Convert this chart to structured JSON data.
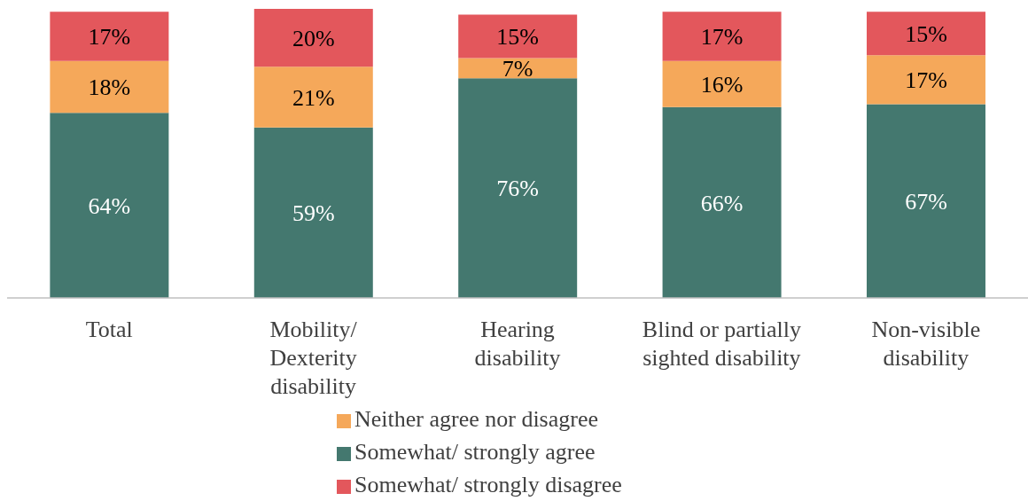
{
  "chart_data": {
    "type": "bar",
    "stacked": true,
    "categories": [
      "Total",
      "Mobility/\nDexterity\ndisability",
      "Hearing\ndisability",
      "Blind or partially\nsighted disability",
      "Non-visible\ndisability"
    ],
    "series": [
      {
        "name": "Somewhat/ strongly agree",
        "color": "#44786f",
        "values": [
          64,
          59,
          76,
          66,
          67
        ],
        "value_labels": [
          "64%",
          "59%",
          "76%",
          "66%",
          "67%"
        ]
      },
      {
        "name": "Neither agree nor disagree",
        "color": "#f5a85a",
        "values": [
          18,
          21,
          7,
          16,
          17
        ],
        "value_labels": [
          "18%",
          "21%",
          "7%",
          "16%",
          "17%"
        ]
      },
      {
        "name": "Somewhat/ strongly disagree",
        "color": "#e3575c",
        "values": [
          17,
          20,
          15,
          17,
          15
        ],
        "value_labels": [
          "17%",
          "20%",
          "15%",
          "17%",
          "15%"
        ]
      }
    ],
    "legend": "bottom",
    "grid": false
  }
}
